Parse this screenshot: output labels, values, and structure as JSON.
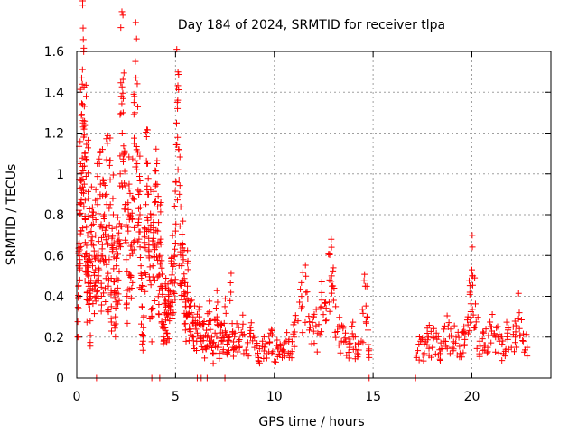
{
  "chart_data": {
    "type": "scatter",
    "title": "Day 184 of 2024, SRMTID for receiver tlpa",
    "xlabel": "GPS time / hours",
    "ylabel": "SRMTID / TECUs",
    "xlim": [
      0,
      24
    ],
    "ylim": [
      0,
      1.6
    ],
    "xticks": [
      0,
      5,
      10,
      15,
      20
    ],
    "xtick_labels": [
      "0",
      "5",
      "10",
      "15",
      "20"
    ],
    "yticks": [
      0,
      0.2,
      0.4,
      0.6,
      0.8,
      1.0,
      1.2,
      1.4,
      1.6
    ],
    "ytick_labels": [
      "0",
      "0.2",
      "0.4",
      "0.6",
      "0.8",
      "1",
      "1.2",
      "1.4",
      "1.6"
    ],
    "grid": true,
    "marker": "+",
    "color": "#ff0000",
    "series": [
      {
        "name": "SRMTID",
        "points": [
          [
            0.05,
            0.2
          ],
          [
            0.08,
            0.45
          ],
          [
            0.1,
            0.62
          ],
          [
            0.12,
            0.85
          ],
          [
            0.15,
            0.58
          ],
          [
            0.18,
            0.97
          ],
          [
            0.2,
            1.05
          ],
          [
            0.22,
            0.72
          ],
          [
            0.25,
            1.47
          ],
          [
            0.28,
            1.44
          ],
          [
            0.3,
            1.34
          ],
          [
            0.32,
            1.25
          ],
          [
            0.35,
            1.18
          ],
          [
            0.38,
            0.95
          ],
          [
            0.4,
            1.1
          ],
          [
            0.42,
            0.78
          ],
          [
            0.45,
            0.55
          ],
          [
            0.48,
            1.38
          ],
          [
            0.5,
            0.65
          ],
          [
            0.52,
            0.42
          ],
          [
            0.55,
            0.7
          ],
          [
            0.58,
            0.88
          ],
          [
            0.6,
            0.36
          ],
          [
            0.62,
            0.5
          ],
          [
            0.65,
            0.6
          ],
          [
            0.68,
            0.28
          ],
          [
            0.7,
            0.4
          ],
          [
            0.75,
            0.75
          ],
          [
            0.8,
            0.55
          ],
          [
            0.85,
            0.65
          ],
          [
            0.9,
            0.45
          ],
          [
            0.95,
            0.7
          ],
          [
            1.0,
            0.6
          ],
          [
            1.05,
            0.85
          ],
          [
            1.1,
            0.5
          ],
          [
            1.15,
            1.05
          ],
          [
            1.2,
            0.95
          ],
          [
            1.25,
            0.4
          ],
          [
            1.3,
            1.12
          ],
          [
            1.35,
            0.7
          ],
          [
            1.4,
            0.8
          ],
          [
            1.45,
            0.58
          ],
          [
            1.5,
            0.9
          ],
          [
            1.55,
            1.15
          ],
          [
            1.6,
            0.45
          ],
          [
            1.65,
            0.75
          ],
          [
            1.7,
            0.85
          ],
          [
            1.75,
            0.35
          ],
          [
            1.8,
            0.62
          ],
          [
            1.85,
            0.8
          ],
          [
            1.9,
            0.42
          ],
          [
            1.95,
            0.3
          ],
          [
            2.0,
            0.55
          ],
          [
            2.05,
            0.7
          ],
          [
            2.1,
            0.48
          ],
          [
            2.15,
            0.65
          ],
          [
            2.2,
            1.0
          ],
          [
            2.25,
            1.38
          ],
          [
            2.3,
            1.2
          ],
          [
            2.35,
            1.3
          ],
          [
            2.4,
            1.1
          ],
          [
            2.45,
            0.85
          ],
          [
            2.5,
            0.58
          ],
          [
            2.55,
            0.4
          ],
          [
            2.6,
            0.72
          ],
          [
            2.65,
            0.95
          ],
          [
            2.7,
            0.6
          ],
          [
            2.75,
            0.5
          ],
          [
            2.8,
            0.78
          ],
          [
            2.85,
            0.88
          ],
          [
            2.9,
            1.15
          ],
          [
            2.95,
            1.3
          ],
          [
            3.0,
            1.47
          ],
          [
            3.05,
            1.05
          ],
          [
            3.1,
            0.92
          ],
          [
            3.15,
            0.68
          ],
          [
            3.2,
            0.8
          ],
          [
            3.25,
            0.55
          ],
          [
            3.3,
            0.35
          ],
          [
            3.35,
            0.18
          ],
          [
            3.4,
            0.45
          ],
          [
            3.45,
            0.7
          ],
          [
            3.5,
            0.85
          ],
          [
            3.55,
            1.05
          ],
          [
            3.6,
            0.9
          ],
          [
            3.65,
            0.62
          ],
          [
            3.7,
            0.48
          ],
          [
            3.75,
            0.75
          ],
          [
            3.8,
            0.3
          ],
          [
            3.85,
            0.55
          ],
          [
            3.9,
            0.8
          ],
          [
            3.95,
            0.65
          ],
          [
            4.0,
            0.95
          ],
          [
            4.05,
            1.05
          ],
          [
            4.1,
            0.72
          ],
          [
            4.15,
            0.5
          ],
          [
            4.2,
            0.6
          ],
          [
            4.25,
            0.68
          ],
          [
            4.3,
            0.45
          ],
          [
            4.35,
            0.25
          ],
          [
            4.4,
            0.18
          ],
          [
            4.45,
            0.32
          ],
          [
            4.5,
            0.38
          ],
          [
            4.55,
            0.22
          ],
          [
            4.6,
            0.3
          ],
          [
            4.65,
            0.4
          ],
          [
            4.7,
            0.28
          ],
          [
            4.75,
            0.35
          ],
          [
            4.8,
            0.48
          ],
          [
            4.85,
            0.52
          ],
          [
            4.9,
            0.42
          ],
          [
            4.95,
            0.6
          ],
          [
            5.0,
            0.72
          ],
          [
            5.05,
            1.25
          ],
          [
            5.1,
            1.32
          ],
          [
            5.15,
            1.12
          ],
          [
            5.2,
            0.9
          ],
          [
            5.25,
            0.65
          ],
          [
            5.3,
            0.55
          ],
          [
            5.35,
            0.48
          ],
          [
            5.4,
            0.58
          ],
          [
            5.45,
            0.4
          ],
          [
            5.5,
            0.35
          ],
          [
            5.55,
            0.3
          ],
          [
            5.6,
            0.45
          ],
          [
            5.65,
            0.38
          ],
          [
            5.7,
            0.25
          ],
          [
            5.8,
            0.32
          ],
          [
            5.9,
            0.2
          ],
          [
            6.0,
            0.28
          ],
          [
            6.1,
            0.22
          ],
          [
            6.2,
            0.3
          ],
          [
            6.3,
            0.18
          ],
          [
            6.4,
            0.25
          ],
          [
            6.5,
            0.15
          ],
          [
            6.6,
            0.2
          ],
          [
            6.7,
            0.28
          ],
          [
            6.8,
            0.18
          ],
          [
            6.9,
            0.12
          ],
          [
            7.0,
            0.22
          ],
          [
            7.1,
            0.3
          ],
          [
            7.2,
            0.15
          ],
          [
            7.3,
            0.25
          ],
          [
            7.4,
            0.18
          ],
          [
            7.5,
            0.35
          ],
          [
            7.6,
            0.12
          ],
          [
            7.7,
            0.2
          ],
          [
            7.8,
            0.42
          ],
          [
            7.9,
            0.15
          ],
          [
            8.0,
            0.22
          ],
          [
            8.2,
            0.18
          ],
          [
            8.4,
            0.25
          ],
          [
            8.6,
            0.12
          ],
          [
            8.8,
            0.2
          ],
          [
            9.0,
            0.15
          ],
          [
            9.2,
            0.1
          ],
          [
            9.4,
            0.18
          ],
          [
            9.6,
            0.12
          ],
          [
            9.8,
            0.22
          ],
          [
            10.0,
            0.08
          ],
          [
            10.2,
            0.15
          ],
          [
            10.4,
            0.1
          ],
          [
            10.6,
            0.18
          ],
          [
            10.8,
            0.12
          ],
          [
            11.0,
            0.2
          ],
          [
            11.2,
            0.28
          ],
          [
            11.4,
            0.35
          ],
          [
            11.6,
            0.42
          ],
          [
            11.8,
            0.25
          ],
          [
            12.0,
            0.3
          ],
          [
            12.2,
            0.22
          ],
          [
            12.4,
            0.35
          ],
          [
            12.6,
            0.28
          ],
          [
            12.8,
            0.48
          ],
          [
            12.9,
            0.5
          ],
          [
            13.0,
            0.38
          ],
          [
            13.2,
            0.25
          ],
          [
            13.4,
            0.18
          ],
          [
            13.6,
            0.22
          ],
          [
            13.8,
            0.15
          ],
          [
            14.0,
            0.2
          ],
          [
            14.2,
            0.12
          ],
          [
            14.4,
            0.18
          ],
          [
            14.6,
            0.45
          ],
          [
            14.7,
            0.3
          ],
          [
            14.8,
            0.1
          ],
          [
            17.2,
            0.1
          ],
          [
            17.4,
            0.18
          ],
          [
            17.6,
            0.12
          ],
          [
            17.8,
            0.2
          ],
          [
            18.0,
            0.15
          ],
          [
            18.2,
            0.22
          ],
          [
            18.4,
            0.12
          ],
          [
            18.6,
            0.18
          ],
          [
            18.8,
            0.25
          ],
          [
            19.0,
            0.15
          ],
          [
            19.2,
            0.2
          ],
          [
            19.4,
            0.12
          ],
          [
            19.6,
            0.22
          ],
          [
            19.8,
            0.3
          ],
          [
            19.9,
            0.42
          ],
          [
            20.0,
            0.53
          ],
          [
            20.05,
            0.5
          ],
          [
            20.2,
            0.25
          ],
          [
            20.4,
            0.18
          ],
          [
            20.6,
            0.22
          ],
          [
            20.8,
            0.15
          ],
          [
            21.0,
            0.25
          ],
          [
            21.2,
            0.2
          ],
          [
            21.4,
            0.18
          ],
          [
            21.6,
            0.12
          ],
          [
            21.8,
            0.22
          ],
          [
            22.0,
            0.15
          ],
          [
            22.2,
            0.2
          ],
          [
            22.4,
            0.32
          ],
          [
            22.6,
            0.18
          ],
          [
            22.8,
            0.15
          ]
        ],
        "zeros": [
          1.0,
          3.8,
          4.2,
          6.1,
          6.3,
          6.6,
          7.5,
          14.8,
          17.15
        ]
      }
    ]
  }
}
